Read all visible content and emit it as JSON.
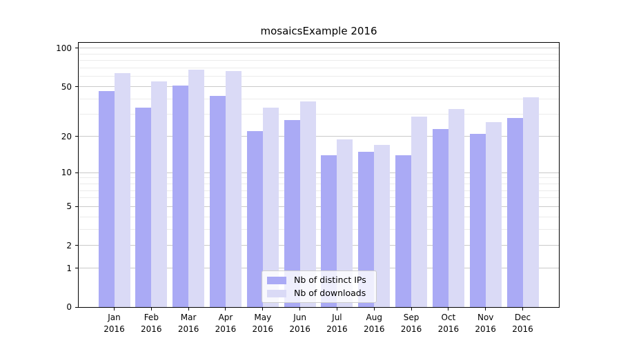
{
  "title": "mosaicsExample 2016",
  "chart_data": {
    "type": "bar",
    "title": "mosaicsExample 2016",
    "categories": [
      "Jan 2016",
      "Feb 2016",
      "Mar 2016",
      "Apr 2016",
      "May 2016",
      "Jun 2016",
      "Jul 2016",
      "Aug 2016",
      "Sep 2016",
      "Oct 2016",
      "Nov 2016",
      "Dec 2016"
    ],
    "series": [
      {
        "name": "Nb of distinct IPs",
        "color": "#aaaaf5",
        "values": [
          46,
          34,
          51,
          42,
          22,
          27,
          14,
          15,
          14,
          23,
          21,
          28
        ]
      },
      {
        "name": "Nb of downloads",
        "color": "#dadaf6",
        "values": [
          64,
          55,
          68,
          66,
          34,
          38,
          19,
          17,
          29,
          33,
          26,
          41
        ]
      }
    ],
    "yscale": "log1p",
    "y_ticks": [
      100,
      50,
      20,
      10,
      5,
      2,
      1,
      0
    ],
    "y_minor_ticks": [
      3,
      4,
      6,
      7,
      8,
      9,
      30,
      40,
      60,
      70,
      80,
      90
    ],
    "ylim": [
      0,
      110
    ],
    "xlabel": "",
    "ylabel": "",
    "grid": "horizontal",
    "legend_position": "bottom-center",
    "colors": {
      "spine": "#000000",
      "grid_major": "#c9c9c9",
      "grid_minor": "#ebebeb",
      "background": "#ffffff"
    }
  }
}
